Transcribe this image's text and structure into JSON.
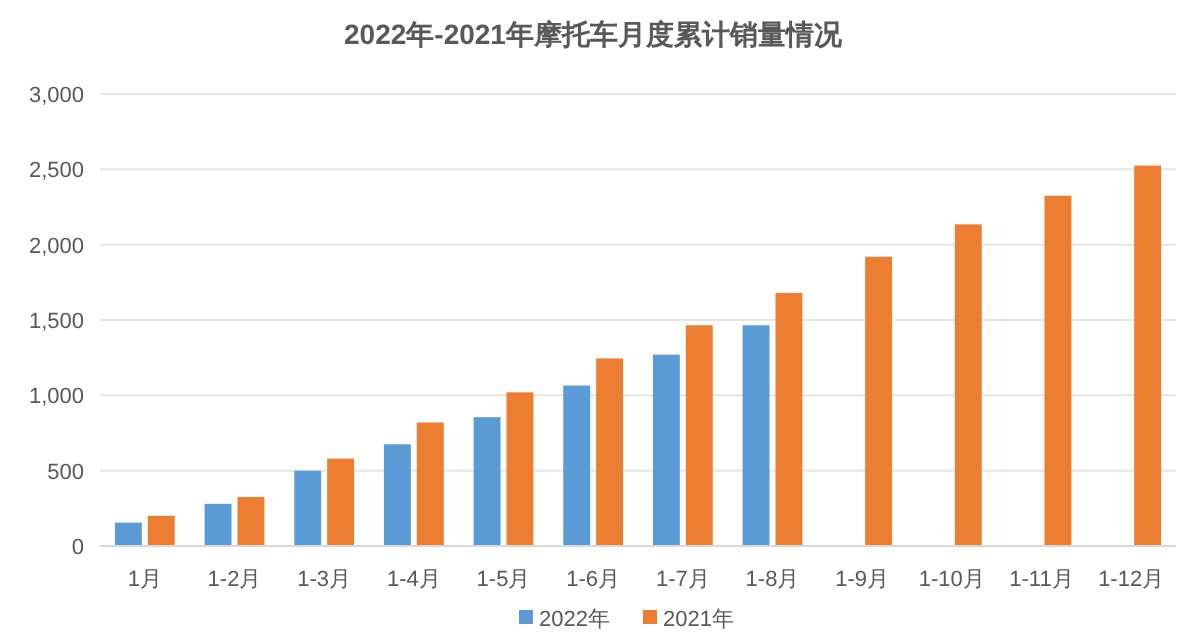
{
  "chart_data": {
    "type": "bar",
    "title": "2022年-2021年摩托车月度累计销量情况",
    "categories": [
      "1月",
      "1-2月",
      "1-3月",
      "1-4月",
      "1-5月",
      "1-6月",
      "1-7月",
      "1-8月",
      "1-9月",
      "1-10月",
      "1-11月",
      "1-12月"
    ],
    "series": [
      {
        "name": "2022年",
        "color": "#5b9bd5",
        "values": [
          155,
          280,
          500,
          675,
          855,
          1065,
          1270,
          1465,
          null,
          null,
          null,
          null
        ]
      },
      {
        "name": "2021年",
        "color": "#ed7d31",
        "values": [
          200,
          325,
          580,
          820,
          1020,
          1245,
          1465,
          1680,
          1920,
          2135,
          2325,
          2525
        ]
      }
    ],
    "ylim": [
      0,
      3000
    ],
    "yticks": [
      0,
      500,
      {
        "value": 1000,
        "label": "1,000"
      },
      {
        "value": 1500,
        "label": "1,500"
      },
      {
        "value": 2000,
        "label": "2,000"
      },
      {
        "value": 2500,
        "label": "2,500"
      },
      {
        "value": 3000,
        "label": "3,000"
      }
    ],
    "grid": "y",
    "legend": "bottom"
  }
}
